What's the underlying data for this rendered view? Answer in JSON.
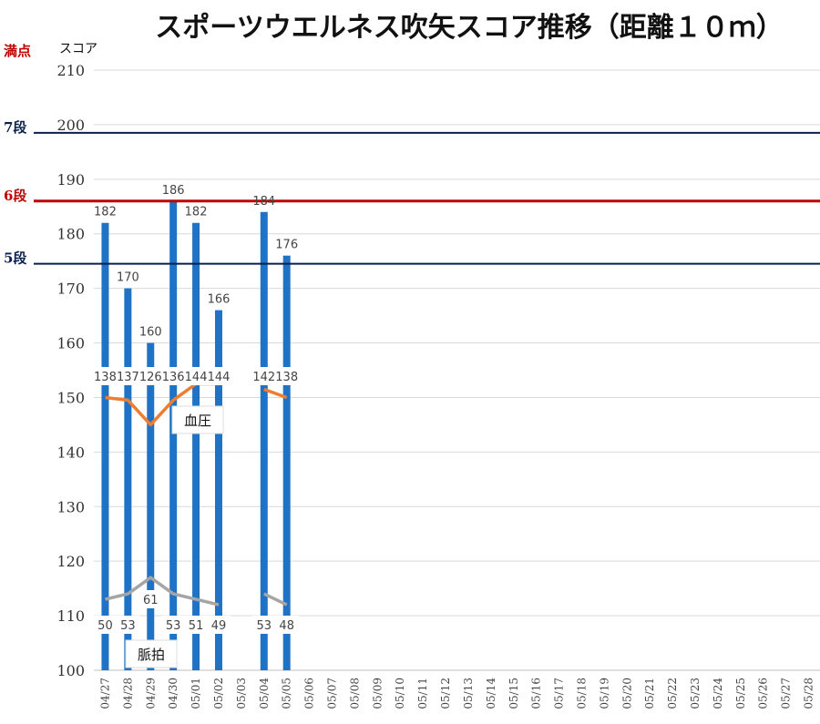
{
  "chart_data": {
    "type": "bar",
    "title": "スポーツウエルネス吹矢スコア推移（距離１０ｍ）",
    "ylabel": "スコア",
    "ylim": [
      100,
      210
    ],
    "yticks": [
      100,
      110,
      120,
      130,
      140,
      150,
      160,
      170,
      180,
      190,
      200,
      210
    ],
    "grid": true,
    "categories": [
      "04/27",
      "04/28",
      "04/29",
      "04/30",
      "05/01",
      "05/02",
      "05/03",
      "05/04",
      "05/05",
      "05/06",
      "05/07",
      "05/08",
      "05/09",
      "05/10",
      "05/11",
      "05/12",
      "05/13",
      "05/14",
      "05/15",
      "05/16",
      "05/17",
      "05/18",
      "05/19",
      "05/20",
      "05/21",
      "05/22",
      "05/23",
      "05/24",
      "05/25",
      "05/26",
      "05/27",
      "05/28"
    ],
    "series": [
      {
        "kind": "bar",
        "color": "#1f72c4",
        "values": [
          182,
          170,
          160,
          186,
          182,
          166,
          null,
          184,
          176,
          null,
          null,
          null,
          null,
          null,
          null,
          null,
          null,
          null,
          null,
          null,
          null,
          null,
          null,
          null,
          null,
          null,
          null,
          null,
          null,
          null,
          null,
          null
        ]
      },
      {
        "kind": "line",
        "color": "#ed7d31",
        "values": [
          150,
          149.5,
          145,
          149.5,
          152.5,
          152.5,
          null,
          151.5,
          150,
          null,
          null,
          null,
          null,
          null,
          null,
          null,
          null,
          null,
          null,
          null,
          null,
          null,
          null,
          null,
          null,
          null,
          null,
          null,
          null,
          null,
          null,
          null
        ],
        "labels": [
          "138",
          "137",
          "126",
          "136",
          "144",
          "144",
          null,
          "142",
          "138"
        ]
      },
      {
        "kind": "line",
        "color": "#a5a5a5",
        "values": [
          113,
          114,
          117,
          114,
          113,
          112,
          null,
          114,
          112,
          null,
          null,
          null,
          null,
          null,
          null,
          null,
          null,
          null,
          null,
          null,
          null,
          null,
          null,
          null,
          null,
          null,
          null,
          null,
          null,
          null,
          null,
          null
        ],
        "labels": [
          "50",
          "53",
          "61",
          "53",
          "51",
          "49",
          null,
          "53",
          "48"
        ]
      }
    ],
    "reference_lines": [
      {
        "label": "満点",
        "value": 210,
        "color": "#c00000"
      },
      {
        "label": "7段",
        "value": 198.5,
        "color": "#0a1f4e"
      },
      {
        "label": "6段",
        "value": 186,
        "color": "#c00000"
      },
      {
        "label": "5段",
        "value": 174.5,
        "color": "#0a1f4e"
      }
    ],
    "callouts": {
      "bp": "血圧",
      "pulse": "脈拍"
    }
  }
}
